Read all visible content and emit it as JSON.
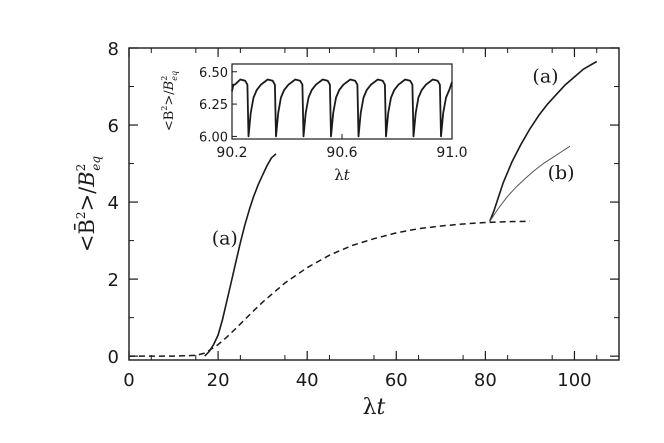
{
  "chart_data": [
    {
      "type": "line",
      "xlabel": "λt",
      "ylabel": "<B̄²>/B²eq",
      "xlim": [
        0,
        110
      ],
      "ylim": [
        -0.1,
        8
      ],
      "xticks": [
        "0",
        "20",
        "40",
        "60",
        "80",
        "100"
      ],
      "yticks": [
        "0",
        "2",
        "4",
        "6",
        "8"
      ],
      "series": [
        {
          "name": "",
          "style": "dashed",
          "x": [
            0,
            10,
            15,
            17,
            18,
            20,
            22,
            24,
            26,
            28,
            30,
            35,
            40,
            45,
            50,
            55,
            60,
            65,
            70,
            75,
            80,
            85,
            90
          ],
          "y": [
            0,
            0,
            0.02,
            0.08,
            0.15,
            0.3,
            0.5,
            0.72,
            0.95,
            1.18,
            1.4,
            1.9,
            2.3,
            2.62,
            2.87,
            3.05,
            3.2,
            3.31,
            3.38,
            3.43,
            3.47,
            3.49,
            3.5
          ]
        },
        {
          "name": "",
          "style": "solid",
          "x": [
            17,
            18,
            19,
            20,
            21,
            22,
            23,
            24,
            25,
            26,
            27,
            28,
            29,
            30,
            31,
            32,
            33
          ],
          "y": [
            0,
            0.12,
            0.3,
            0.55,
            0.95,
            1.45,
            1.95,
            2.45,
            2.95,
            3.4,
            3.8,
            4.15,
            4.45,
            4.7,
            4.95,
            5.15,
            5.25
          ]
        },
        {
          "name": "",
          "style": "solid",
          "x": [
            81,
            82,
            84,
            86,
            88,
            90,
            92,
            94,
            96,
            98,
            100,
            102,
            105
          ],
          "y": [
            3.5,
            3.8,
            4.5,
            5.05,
            5.5,
            5.9,
            6.25,
            6.55,
            6.8,
            7.05,
            7.25,
            7.45,
            7.65
          ]
        },
        {
          "name": "",
          "style": "thin",
          "x": [
            81,
            83,
            85,
            87,
            89,
            91,
            93,
            95,
            97,
            99
          ],
          "y": [
            3.5,
            3.85,
            4.15,
            4.4,
            4.62,
            4.82,
            5.0,
            5.15,
            5.3,
            5.45
          ]
        }
      ],
      "annotations": [
        {
          "text": "(a)",
          "x": 21.5,
          "y": 2.9
        },
        {
          "text": "(a)",
          "x": 93.5,
          "y": 7.1
        },
        {
          "text": "(b)",
          "x": 97,
          "y": 4.6
        }
      ]
    },
    {
      "type": "line",
      "inset": true,
      "xlabel": "λt",
      "ylabel": "<B²>/B²eq",
      "xlim": [
        90.2,
        91.0
      ],
      "ylim": [
        5.98,
        6.56
      ],
      "xticks": [
        "90.2",
        "90.6",
        "91.0"
      ],
      "yticks": [
        "6.00",
        "6.25",
        "6.50"
      ],
      "series": [
        {
          "name": "",
          "style": "solid",
          "period": 0.1,
          "phase_start": 90.26,
          "peak": 6.44,
          "trough": 6.0,
          "baseline": 6.4,
          "description_values": [
            6.4,
            6.44,
            6.42,
            6.38,
            6.0
          ]
        }
      ]
    }
  ]
}
